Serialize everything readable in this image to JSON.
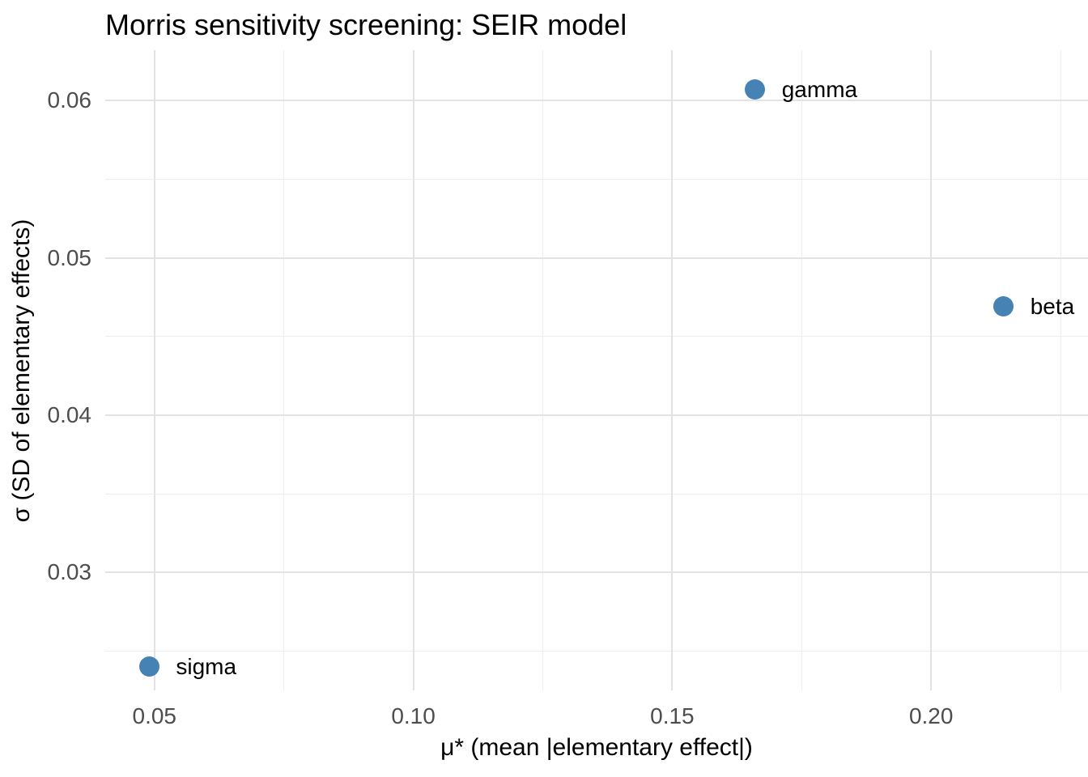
{
  "chart_data": {
    "type": "scatter",
    "title": "Morris sensitivity screening: SEIR model",
    "xlabel": "μ* (mean |elementary effect|)",
    "ylabel": "σ (SD of elementary effects)",
    "legend_position": "none",
    "grid": true,
    "background": "#ffffff",
    "point_color": "#4682b4",
    "point_label_color": "#000000",
    "tick_label_color": "#4d4d4d",
    "major_grid_color": "#e3e3e3",
    "minor_grid_color": "#ededed",
    "xlim": [
      0.0405,
      0.2303
    ],
    "ylim": [
      0.0225,
      0.0632
    ],
    "x_ticks": [
      {
        "value": 0.05,
        "label": "0.05"
      },
      {
        "value": 0.1,
        "label": "0.10"
      },
      {
        "value": 0.15,
        "label": "0.15"
      },
      {
        "value": 0.2,
        "label": "0.20"
      }
    ],
    "y_ticks": [
      {
        "value": 0.03,
        "label": "0.03"
      },
      {
        "value": 0.04,
        "label": "0.04"
      },
      {
        "value": 0.05,
        "label": "0.05"
      },
      {
        "value": 0.06,
        "label": "0.06"
      }
    ],
    "x_minor_ticks": [
      0.075,
      0.125,
      0.175,
      0.225
    ],
    "y_minor_ticks": [
      0.025,
      0.035,
      0.045,
      0.055
    ],
    "points": [
      {
        "label": "gamma",
        "x": 0.166,
        "y": 0.0607
      },
      {
        "label": "beta",
        "x": 0.214,
        "y": 0.0469
      },
      {
        "label": "sigma",
        "x": 0.049,
        "y": 0.024
      }
    ]
  }
}
